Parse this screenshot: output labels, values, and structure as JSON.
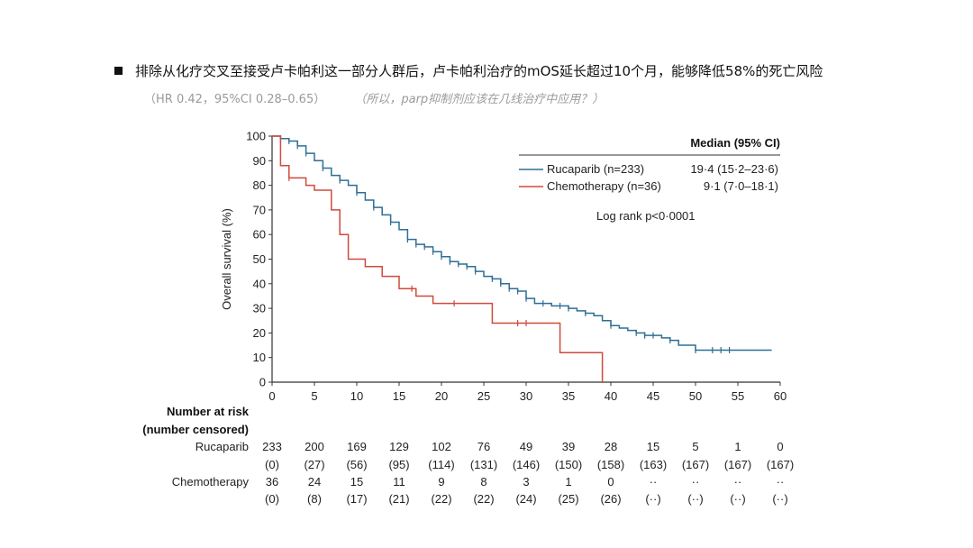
{
  "slide": {
    "headline": "排除从化疗交叉至接受卢卡帕利这一部分人群后，卢卡帕利治疗的mOS延长超过10个月，能够降低58%的死亡风险",
    "hr_text": "（HR 0.42，95%CI 0.28–0.65）",
    "note_text": "（所以，parp抑制剂应该在几线治疗中应用？）"
  },
  "chart_data": {
    "type": "line",
    "subtype": "kaplan-meier",
    "ylabel": "Overall survival (%)",
    "xlabel": "",
    "xlim": [
      0,
      60
    ],
    "ylim": [
      0,
      100
    ],
    "xticks": [
      0,
      5,
      10,
      15,
      20,
      25,
      30,
      35,
      40,
      45,
      50,
      55,
      60
    ],
    "yticks": [
      0,
      10,
      20,
      30,
      40,
      50,
      60,
      70,
      80,
      90,
      100
    ],
    "colors": {
      "rucaparib": "#2e6e96",
      "chemotherapy": "#d04a3c",
      "axis": "#333333"
    },
    "legend": {
      "header": "Median (95% CI)",
      "entries": [
        {
          "label": "Rucaparib (n=233)",
          "median": "19·4 (15·2–23·6)"
        },
        {
          "label": "Chemotherapy (n=36)",
          "median": "9·1 (7·0–18·1)"
        }
      ],
      "note": "Log rank p<0·0001"
    },
    "series": [
      {
        "name": "Rucaparib",
        "x": [
          0,
          1,
          2,
          3,
          4,
          5,
          6,
          7,
          8,
          9,
          10,
          11,
          12,
          13,
          14,
          15,
          16,
          17,
          18,
          19,
          20,
          21,
          22,
          23,
          24,
          25,
          26,
          27,
          28,
          29,
          30,
          31,
          32,
          33,
          34,
          35,
          36,
          37,
          38,
          39,
          40,
          41,
          42,
          43,
          44,
          45,
          46,
          47,
          48,
          49,
          50,
          52,
          54,
          56,
          59
        ],
        "y": [
          100,
          99,
          98,
          96,
          93,
          90,
          87,
          84,
          82,
          80,
          77,
          74,
          71,
          68,
          65,
          62,
          58,
          56,
          55,
          53,
          51,
          49,
          48,
          47,
          45,
          43,
          42,
          40,
          38,
          37,
          34,
          32,
          32,
          31,
          31,
          30,
          29,
          28,
          27,
          25,
          23,
          22,
          21,
          20,
          19,
          19,
          18,
          17,
          15,
          15,
          13,
          13,
          13,
          13,
          13
        ],
        "censor_x": [
          1,
          2,
          3,
          4,
          6,
          8,
          10,
          12,
          14,
          16,
          17,
          18,
          19,
          20,
          21,
          22,
          23,
          24,
          26,
          27,
          28,
          29,
          30,
          32,
          34,
          35,
          37,
          40,
          43,
          44,
          45,
          47,
          50,
          52,
          53,
          54
        ]
      },
      {
        "name": "Chemotherapy",
        "x": [
          0,
          1,
          2,
          4,
          5,
          7,
          8,
          9,
          11,
          13,
          15,
          17,
          19,
          24,
          26,
          34,
          39
        ],
        "y": [
          100,
          88,
          83,
          80,
          78,
          70,
          60,
          50,
          47,
          43,
          38,
          35,
          32,
          32,
          24,
          12,
          0
        ],
        "censor_x": [
          2,
          16.5,
          21.5,
          29,
          30
        ]
      }
    ],
    "risk_table": {
      "title_line1": "Number at risk",
      "title_line2": "(number censored)",
      "rows": [
        {
          "label": "Rucaparib",
          "at_risk": [
            "233",
            "200",
            "169",
            "129",
            "102",
            "76",
            "49",
            "39",
            "28",
            "15",
            "5",
            "1",
            "0"
          ],
          "censored": [
            "(0)",
            "(27)",
            "(56)",
            "(95)",
            "(114)",
            "(131)",
            "(146)",
            "(150)",
            "(158)",
            "(163)",
            "(167)",
            "(167)",
            "(167)"
          ]
        },
        {
          "label": "Chemotherapy",
          "at_risk": [
            "36",
            "24",
            "15",
            "11",
            "9",
            "8",
            "3",
            "1",
            "0",
            "··",
            "··",
            "··",
            "··"
          ],
          "censored": [
            "(0)",
            "(8)",
            "(17)",
            "(21)",
            "(22)",
            "(22)",
            "(24)",
            "(25)",
            "(26)",
            "(··)",
            "(··)",
            "(··)",
            "(··)"
          ]
        }
      ]
    }
  }
}
